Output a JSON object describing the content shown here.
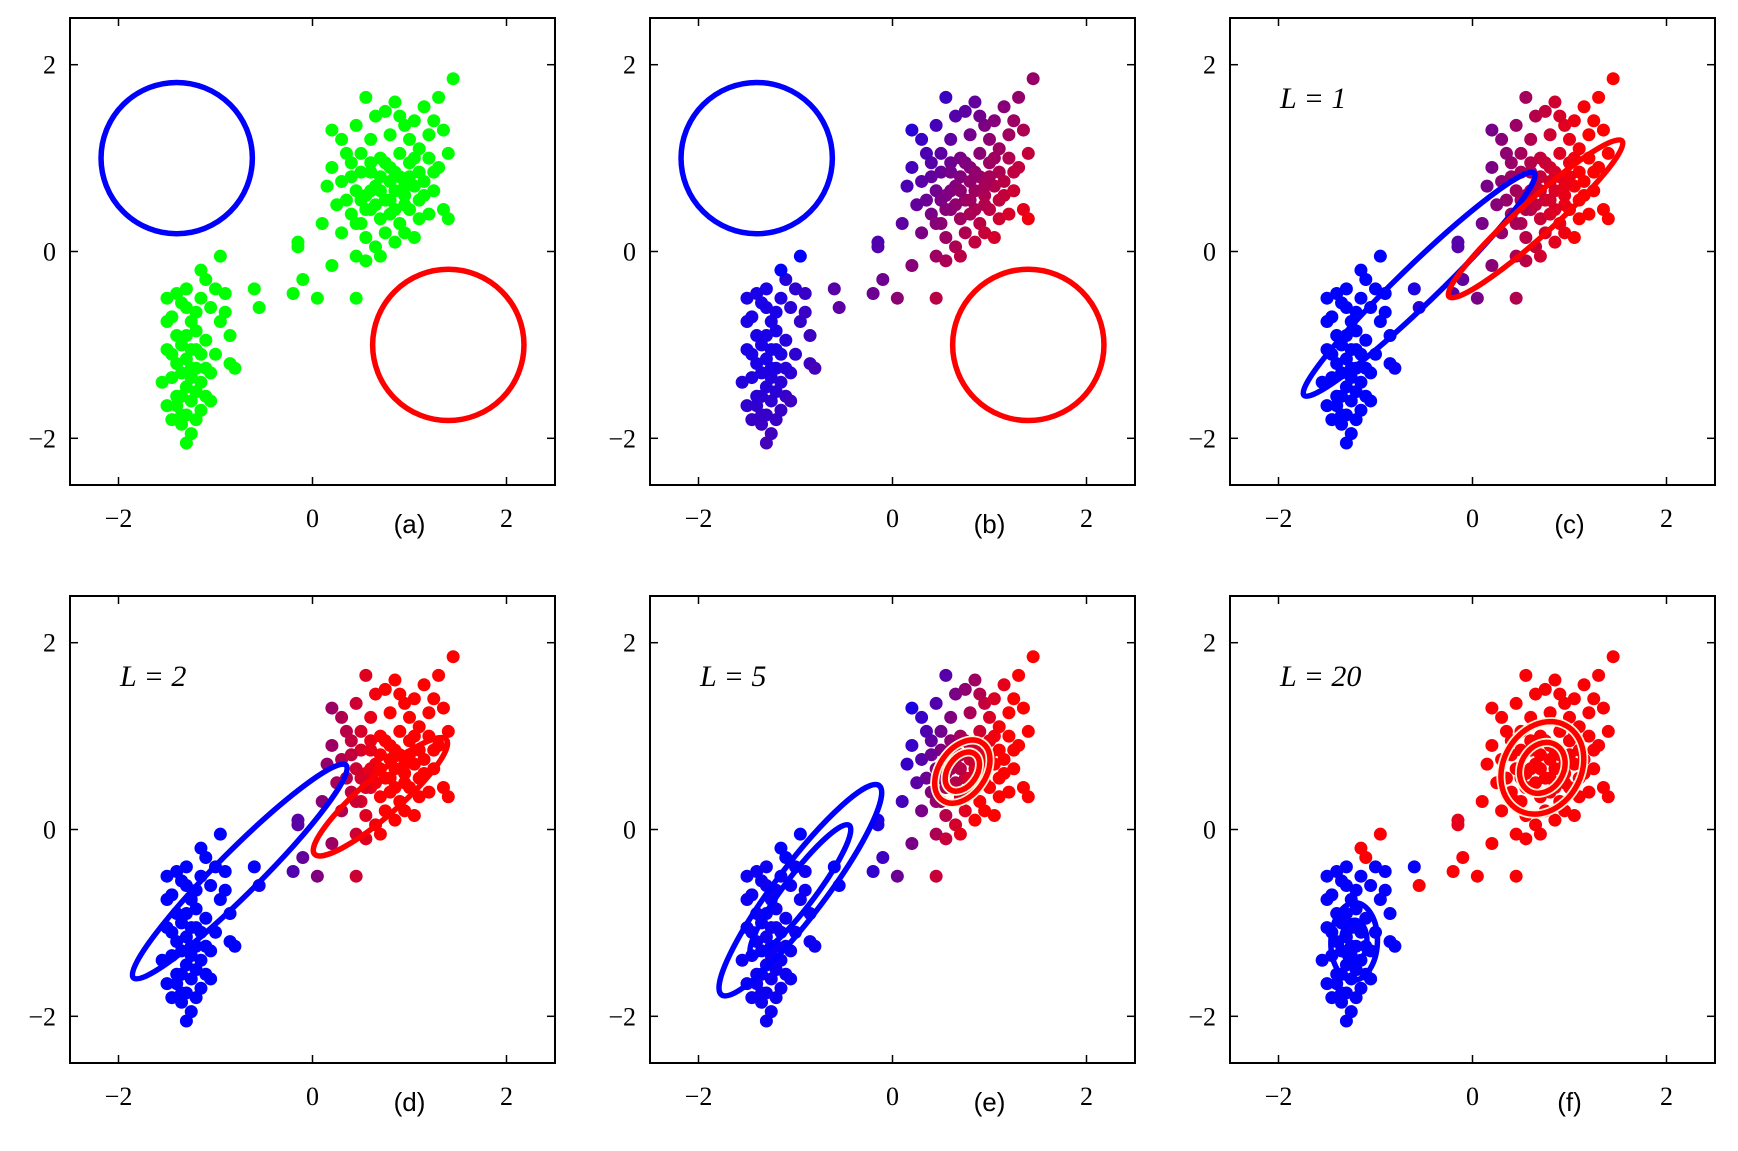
{
  "figure_title": "",
  "chart_data": [
    {
      "type": "scatter",
      "panel_label": "(a)",
      "annotation": "",
      "xlim": [
        -2.5,
        2.5
      ],
      "ylim": [
        -2.5,
        2.5
      ],
      "xticks": [
        -2,
        0,
        2
      ],
      "yticks": [
        -2,
        0,
        2
      ],
      "xtick_labels": [
        "−2",
        "0",
        "2"
      ],
      "ytick_labels": [
        "−2",
        "0",
        "2"
      ],
      "xlabel": "",
      "ylabel": "",
      "grid": false,
      "point_coloring": "green",
      "components": [
        {
          "color": "#0000ff",
          "mean": [
            -1.4,
            1.0
          ],
          "sx": 0.78,
          "sy": 0.78,
          "angle": 0,
          "rings": [
            1
          ]
        },
        {
          "color": "#ff0000",
          "mean": [
            1.4,
            -1.0
          ],
          "sx": 0.78,
          "sy": 0.78,
          "angle": 0,
          "rings": [
            1
          ]
        }
      ]
    },
    {
      "type": "scatter",
      "panel_label": "(b)",
      "annotation": "",
      "xlim": [
        -2.5,
        2.5
      ],
      "ylim": [
        -2.5,
        2.5
      ],
      "xticks": [
        -2,
        0,
        2
      ],
      "yticks": [
        -2,
        0,
        2
      ],
      "xtick_labels": [
        "−2",
        "0",
        "2"
      ],
      "ytick_labels": [
        "−2",
        "0",
        "2"
      ],
      "xlabel": "",
      "ylabel": "",
      "grid": false,
      "point_coloring": "responsibility-b",
      "components": [
        {
          "color": "#0000ff",
          "mean": [
            -1.4,
            1.0
          ],
          "sx": 0.78,
          "sy": 0.78,
          "angle": 0,
          "rings": [
            1
          ]
        },
        {
          "color": "#ff0000",
          "mean": [
            1.4,
            -1.0
          ],
          "sx": 0.78,
          "sy": 0.78,
          "angle": 0,
          "rings": [
            1
          ]
        }
      ]
    },
    {
      "type": "scatter",
      "panel_label": "(c)",
      "annotation": "L = 1",
      "xlim": [
        -2.5,
        2.5
      ],
      "ylim": [
        -2.5,
        2.5
      ],
      "xticks": [
        -2,
        0,
        2
      ],
      "yticks": [
        -2,
        0,
        2
      ],
      "xtick_labels": [
        "−2",
        "0",
        "2"
      ],
      "ytick_labels": [
        "−2",
        "0",
        "2"
      ],
      "xlabel": "",
      "ylabel": "",
      "grid": false,
      "point_coloring": "responsibility-c",
      "components": [
        {
          "color": "#0000ff",
          "mean": [
            -0.55,
            -0.35
          ],
          "sx": 1.65,
          "sy": 0.2,
          "angle": 44,
          "rings": [
            1
          ]
        },
        {
          "color": "#ff0000",
          "mean": [
            0.65,
            0.35
          ],
          "sx": 1.2,
          "sy": 0.18,
          "angle": 42,
          "rings": [
            1
          ]
        }
      ]
    },
    {
      "type": "scatter",
      "panel_label": "(d)",
      "annotation": "L = 2",
      "xlim": [
        -2.5,
        2.5
      ],
      "ylim": [
        -2.5,
        2.5
      ],
      "xticks": [
        -2,
        0,
        2
      ],
      "yticks": [
        -2,
        0,
        2
      ],
      "xtick_labels": [
        "−2",
        "0",
        "2"
      ],
      "ytick_labels": [
        "−2",
        "0",
        "2"
      ],
      "xlabel": "",
      "ylabel": "",
      "grid": false,
      "point_coloring": "responsibility-d",
      "components": [
        {
          "color": "#0000ff",
          "mean": [
            -0.75,
            -0.45
          ],
          "sx": 1.55,
          "sy": 0.22,
          "angle": 45,
          "rings": [
            1
          ]
        },
        {
          "color": "#ff0000",
          "mean": [
            0.7,
            0.35
          ],
          "sx": 0.9,
          "sy": 0.2,
          "angle": 41,
          "rings": [
            1
          ]
        }
      ]
    },
    {
      "type": "scatter",
      "panel_label": "(e)",
      "annotation": "L = 5",
      "xlim": [
        -2.5,
        2.5
      ],
      "ylim": [
        -2.5,
        2.5
      ],
      "xticks": [
        -2,
        0,
        2
      ],
      "yticks": [
        -2,
        0,
        2
      ],
      "xtick_labels": [
        "−2",
        "0",
        "2"
      ],
      "ytick_labels": [
        "−2",
        "0",
        "2"
      ],
      "xlabel": "",
      "ylabel": "",
      "grid": false,
      "point_coloring": "responsibility-e",
      "components": [
        {
          "color": "#0000ff",
          "mean": [
            -0.95,
            -0.65
          ],
          "sx": 1.35,
          "sy": 0.26,
          "angle": 53,
          "rings": [
            1,
            0.62
          ]
        },
        {
          "color": "#ff0000",
          "mean": [
            0.72,
            0.62
          ],
          "sx": 0.36,
          "sy": 0.24,
          "angle": 55,
          "rings": [
            1,
            0.62
          ]
        }
      ]
    },
    {
      "type": "scatter",
      "panel_label": "(f)",
      "annotation": "L = 20",
      "xlim": [
        -2.5,
        2.5
      ],
      "ylim": [
        -2.5,
        2.5
      ],
      "xticks": [
        -2,
        0,
        2
      ],
      "yticks": [
        -2,
        0,
        2
      ],
      "xtick_labels": [
        "−2",
        "0",
        "2"
      ],
      "ytick_labels": [
        "−2",
        "0",
        "2"
      ],
      "xlabel": "",
      "ylabel": "",
      "grid": false,
      "point_coloring": "responsibility-f",
      "components": [
        {
          "color": "#0000ff",
          "mean": [
            -1.22,
            -1.2
          ],
          "sx": 0.4,
          "sy": 0.24,
          "angle": 88,
          "rings": [
            1,
            0.55
          ]
        },
        {
          "color": "#ff0000",
          "mean": [
            0.72,
            0.66
          ],
          "sx": 0.5,
          "sy": 0.4,
          "angle": 60,
          "rings": [
            1,
            0.55
          ]
        }
      ]
    }
  ],
  "scatter_points": [
    [
      -1.35,
      -0.55
    ],
    [
      -1.3,
      -0.6
    ],
    [
      -1.45,
      -0.7
    ],
    [
      -1.25,
      -0.75
    ],
    [
      -1.2,
      -0.85
    ],
    [
      -1.4,
      -0.9
    ],
    [
      -1.35,
      -1.0
    ],
    [
      -1.25,
      -1.05
    ],
    [
      -1.5,
      -1.05
    ],
    [
      -1.15,
      -1.1
    ],
    [
      -1.3,
      -1.15
    ],
    [
      -1.4,
      -1.2
    ],
    [
      -1.2,
      -1.25
    ],
    [
      -1.35,
      -1.3
    ],
    [
      -1.25,
      -1.35
    ],
    [
      -1.45,
      -1.35
    ],
    [
      -1.15,
      -1.4
    ],
    [
      -1.3,
      -1.45
    ],
    [
      -1.2,
      -1.5
    ],
    [
      -1.35,
      -1.55
    ],
    [
      -1.25,
      -1.6
    ],
    [
      -1.4,
      -1.65
    ],
    [
      -1.15,
      -1.7
    ],
    [
      -1.3,
      -1.75
    ],
    [
      -1.2,
      -1.8
    ],
    [
      -1.35,
      -1.85
    ],
    [
      -1.25,
      -1.95
    ],
    [
      -1.3,
      -2.05
    ],
    [
      -1.1,
      -1.55
    ],
    [
      -1.05,
      -1.3
    ],
    [
      -1.0,
      -1.1
    ],
    [
      -1.1,
      -0.95
    ],
    [
      -0.95,
      -0.75
    ],
    [
      -1.05,
      -0.6
    ],
    [
      -1.15,
      -0.5
    ],
    [
      -0.9,
      -0.45
    ],
    [
      -1.1,
      -0.3
    ],
    [
      -1.0,
      -0.4
    ],
    [
      -0.95,
      -0.05
    ],
    [
      -1.55,
      -1.4
    ],
    [
      -1.5,
      -0.5
    ],
    [
      -1.45,
      -1.1
    ],
    [
      -1.4,
      -1.55
    ],
    [
      -0.85,
      -1.2
    ],
    [
      -0.85,
      -0.9
    ],
    [
      -0.8,
      -1.25
    ],
    [
      -1.5,
      -0.75
    ],
    [
      -1.2,
      -0.65
    ],
    [
      -1.45,
      -1.8
    ],
    [
      -1.35,
      -1.75
    ],
    [
      -1.5,
      -1.65
    ],
    [
      -1.25,
      -1.25
    ],
    [
      -1.2,
      -1.05
    ],
    [
      -1.1,
      -1.25
    ],
    [
      -1.05,
      -1.6
    ],
    [
      -1.4,
      -0.45
    ],
    [
      -1.3,
      -0.9
    ],
    [
      -1.15,
      -0.2
    ],
    [
      -1.3,
      -0.4
    ],
    [
      -0.9,
      -0.65
    ],
    [
      -0.55,
      -0.6
    ],
    [
      -0.6,
      -0.4
    ],
    [
      -0.15,
      0.1
    ],
    [
      -0.2,
      -0.45
    ],
    [
      -0.1,
      -0.3
    ],
    [
      0.05,
      -0.5
    ],
    [
      0.2,
      -0.15
    ],
    [
      0.45,
      -0.5
    ],
    [
      -0.15,
      0.05
    ],
    [
      0.1,
      0.3
    ],
    [
      0.3,
      1.2
    ],
    [
      0.45,
      1.35
    ],
    [
      0.55,
      1.65
    ],
    [
      0.65,
      1.45
    ],
    [
      0.75,
      1.5
    ],
    [
      0.85,
      1.6
    ],
    [
      0.95,
      1.35
    ],
    [
      1.05,
      1.4
    ],
    [
      1.15,
      1.55
    ],
    [
      1.25,
      1.4
    ],
    [
      1.35,
      1.3
    ],
    [
      1.45,
      1.85
    ],
    [
      1.3,
      1.65
    ],
    [
      0.2,
      0.9
    ],
    [
      0.3,
      0.75
    ],
    [
      0.4,
      0.95
    ],
    [
      0.5,
      0.85
    ],
    [
      0.6,
      0.95
    ],
    [
      0.7,
      1.0
    ],
    [
      0.8,
      0.9
    ],
    [
      0.9,
      1.05
    ],
    [
      1.0,
      0.95
    ],
    [
      1.1,
      0.85
    ],
    [
      1.2,
      1.0
    ],
    [
      1.3,
      0.9
    ],
    [
      0.35,
      0.55
    ],
    [
      0.45,
      0.65
    ],
    [
      0.55,
      0.6
    ],
    [
      0.65,
      0.7
    ],
    [
      0.75,
      0.55
    ],
    [
      0.85,
      0.65
    ],
    [
      0.95,
      0.6
    ],
    [
      1.05,
      0.7
    ],
    [
      1.15,
      0.6
    ],
    [
      1.25,
      0.65
    ],
    [
      0.4,
      0.4
    ],
    [
      0.5,
      0.3
    ],
    [
      0.6,
      0.45
    ],
    [
      0.7,
      0.35
    ],
    [
      0.8,
      0.4
    ],
    [
      0.9,
      0.3
    ],
    [
      1.0,
      0.45
    ],
    [
      1.1,
      0.35
    ],
    [
      1.2,
      0.4
    ],
    [
      0.55,
      0.15
    ],
    [
      0.65,
      0.05
    ],
    [
      0.75,
      0.2
    ],
    [
      0.85,
      0.1
    ],
    [
      0.95,
      0.2
    ],
    [
      1.05,
      0.15
    ],
    [
      0.45,
      -0.05
    ],
    [
      0.55,
      -0.1
    ],
    [
      0.7,
      -0.05
    ],
    [
      0.3,
      0.2
    ],
    [
      1.35,
      0.45
    ],
    [
      1.4,
      0.35
    ],
    [
      0.15,
      0.7
    ],
    [
      0.25,
      0.5
    ],
    [
      0.6,
      1.2
    ],
    [
      0.8,
      1.25
    ],
    [
      1.0,
      1.2
    ],
    [
      1.2,
      1.25
    ],
    [
      0.5,
      1.05
    ],
    [
      0.7,
      0.8
    ],
    [
      0.9,
      0.8
    ],
    [
      1.1,
      1.1
    ],
    [
      0.6,
      0.65
    ],
    [
      0.8,
      0.75
    ],
    [
      1.0,
      0.8
    ],
    [
      0.95,
      0.5
    ],
    [
      0.75,
      0.95
    ],
    [
      0.65,
      0.5
    ],
    [
      0.85,
      0.45
    ],
    [
      1.15,
      0.75
    ],
    [
      0.4,
      0.8
    ],
    [
      0.55,
      0.45
    ],
    [
      1.25,
      0.85
    ],
    [
      0.35,
      1.05
    ],
    [
      0.9,
      1.45
    ],
    [
      1.4,
      1.05
    ],
    [
      0.2,
      1.3
    ],
    [
      1.05,
      1.0
    ],
    [
      0.5,
      0.55
    ],
    [
      0.7,
      0.65
    ],
    [
      0.8,
      0.55
    ],
    [
      0.6,
      0.85
    ],
    [
      0.95,
      0.7
    ],
    [
      1.1,
      0.55
    ],
    [
      0.85,
      0.85
    ],
    [
      0.45,
      0.3
    ]
  ]
}
